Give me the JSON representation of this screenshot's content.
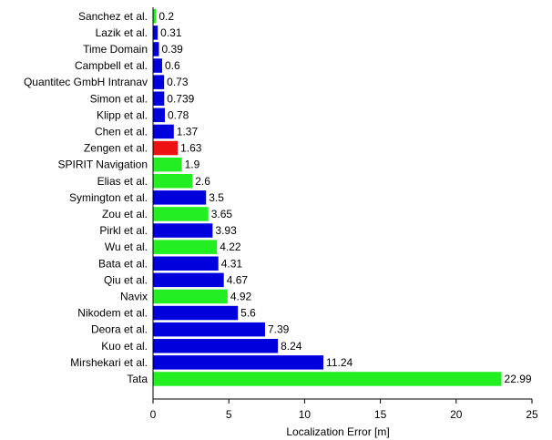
{
  "chart_data": {
    "type": "bar",
    "orientation": "horizontal",
    "xlabel": "Localization Error [m]",
    "ylabel": "",
    "xlim": [
      0,
      25
    ],
    "xticks": [
      0,
      5,
      10,
      15,
      20,
      25
    ],
    "grid": false,
    "colors": {
      "blue": "#0000dd",
      "green": "#22ee22",
      "red": "#ee1111"
    },
    "bars": [
      {
        "label": "Sanchez et al.",
        "value": 0.2,
        "value_label": "0.2",
        "color": "green"
      },
      {
        "label": "Lazik et al.",
        "value": 0.31,
        "value_label": "0.31",
        "color": "blue"
      },
      {
        "label": "Time Domain",
        "value": 0.39,
        "value_label": "0.39",
        "color": "blue"
      },
      {
        "label": "Campbell et al.",
        "value": 0.6,
        "value_label": "0.6",
        "color": "blue"
      },
      {
        "label": "Quantitec GmbH Intranav",
        "value": 0.73,
        "value_label": "0.73",
        "color": "blue"
      },
      {
        "label": "Simon et al.",
        "value": 0.739,
        "value_label": "0.739",
        "color": "blue"
      },
      {
        "label": "Klipp et al.",
        "value": 0.78,
        "value_label": "0.78",
        "color": "blue"
      },
      {
        "label": "Chen et al.",
        "value": 1.37,
        "value_label": "1.37",
        "color": "blue"
      },
      {
        "label": "Zengen et al.",
        "value": 1.63,
        "value_label": "1.63",
        "color": "red"
      },
      {
        "label": "SPIRIT Navigation",
        "value": 1.9,
        "value_label": "1.9",
        "color": "green"
      },
      {
        "label": "Elias et al.",
        "value": 2.6,
        "value_label": "2.6",
        "color": "green"
      },
      {
        "label": "Symington et al.",
        "value": 3.5,
        "value_label": "3.5",
        "color": "blue"
      },
      {
        "label": "Zou et al.",
        "value": 3.65,
        "value_label": "3.65",
        "color": "green"
      },
      {
        "label": "Pirkl et al.",
        "value": 3.93,
        "value_label": "3.93",
        "color": "blue"
      },
      {
        "label": "Wu et al.",
        "value": 4.22,
        "value_label": "4.22",
        "color": "green"
      },
      {
        "label": "Bata et al.",
        "value": 4.31,
        "value_label": "4.31",
        "color": "blue"
      },
      {
        "label": "Qiu et al.",
        "value": 4.67,
        "value_label": "4.67",
        "color": "blue"
      },
      {
        "label": "Navix",
        "value": 4.92,
        "value_label": "4.92",
        "color": "green"
      },
      {
        "label": "Nikodem et al.",
        "value": 5.6,
        "value_label": "5.6",
        "color": "blue"
      },
      {
        "label": "Deora et al.",
        "value": 7.39,
        "value_label": "7.39",
        "color": "blue"
      },
      {
        "label": "Kuo et al.",
        "value": 8.24,
        "value_label": "8.24",
        "color": "blue"
      },
      {
        "label": "Mirshekari et al.",
        "value": 11.24,
        "value_label": "11.24",
        "color": "blue"
      },
      {
        "label": "Tata",
        "value": 22.99,
        "value_label": "22.99",
        "color": "green"
      }
    ]
  }
}
